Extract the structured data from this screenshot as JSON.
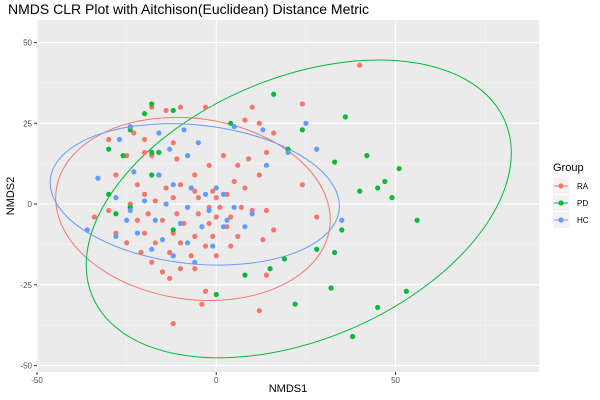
{
  "chart_data": {
    "type": "scatter",
    "title": "NMDS CLR Plot with Aitchison(Euclidean) Distance Metric",
    "xlabel": "NMDS1",
    "ylabel": "NMDS2",
    "xlim": [
      -50,
      90
    ],
    "ylim": [
      -52,
      57
    ],
    "x_ticks": [
      -50,
      0,
      50
    ],
    "y_ticks": [
      -50,
      -25,
      0,
      25,
      50
    ],
    "grid": true,
    "legend": {
      "title": "Group",
      "placement": "right"
    },
    "series": [
      {
        "name": "RA",
        "color": "#F8766D",
        "ellipse": {
          "center": [
            -6.5,
            -1.5
          ],
          "rx": 38.5,
          "ry": 28,
          "angle": 8
        },
        "points": [
          [
            40,
            43
          ],
          [
            -18,
            30
          ],
          [
            -3,
            30
          ],
          [
            -14,
            29
          ],
          [
            -10,
            30
          ],
          [
            10,
            30
          ],
          [
            24,
            31
          ],
          [
            8,
            26
          ],
          [
            12,
            25
          ],
          [
            16,
            22
          ],
          [
            -23,
            22
          ],
          [
            -30,
            20
          ],
          [
            -20,
            20
          ],
          [
            -12,
            19
          ],
          [
            -20,
            16
          ],
          [
            14,
            16
          ],
          [
            -18,
            15
          ],
          [
            -25,
            15
          ],
          [
            28,
            17
          ],
          [
            -11,
            14
          ],
          [
            -28,
            9
          ],
          [
            -16,
            9
          ],
          [
            -6,
            9
          ],
          [
            -2,
            12
          ],
          [
            6,
            12
          ],
          [
            9,
            14
          ],
          [
            2,
            15
          ],
          [
            12,
            9
          ],
          [
            -22,
            6
          ],
          [
            -10,
            6
          ],
          [
            5,
            7
          ],
          [
            8,
            5
          ],
          [
            -14,
            5
          ],
          [
            -6,
            4
          ],
          [
            -1,
            4
          ],
          [
            3,
            3
          ],
          [
            -20,
            3
          ],
          [
            -12,
            2
          ],
          [
            -5,
            2
          ],
          [
            0,
            2
          ],
          [
            -17,
            1
          ],
          [
            -24,
            0
          ],
          [
            -14,
            0
          ],
          [
            -8,
            -1
          ],
          [
            -2,
            -1
          ],
          [
            1,
            -1
          ],
          [
            7,
            -1
          ],
          [
            10,
            -2
          ],
          [
            14,
            -2
          ],
          [
            -30,
            -2
          ],
          [
            -19,
            -3
          ],
          [
            -11,
            -3
          ],
          [
            -5,
            -3
          ],
          [
            0,
            -4
          ],
          [
            4,
            -4
          ],
          [
            -34,
            -4
          ],
          [
            -22,
            -5
          ],
          [
            -15,
            -5
          ],
          [
            -9,
            -6
          ],
          [
            -2,
            -6
          ],
          [
            3,
            -7
          ],
          [
            16,
            -8
          ],
          [
            -28,
            -9
          ],
          [
            -20,
            -9
          ],
          [
            -12,
            -9
          ],
          [
            -6,
            -10
          ],
          [
            -1,
            -10
          ],
          [
            6,
            -10
          ],
          [
            13,
            -11
          ],
          [
            -25,
            -12
          ],
          [
            -17,
            -12
          ],
          [
            -10,
            -12
          ],
          [
            -3,
            -13
          ],
          [
            4,
            -13
          ],
          [
            -21,
            -15
          ],
          [
            -13,
            -15
          ],
          [
            -7,
            -16
          ],
          [
            0,
            -16
          ],
          [
            -18,
            -18
          ],
          [
            -10,
            -20
          ],
          [
            -15,
            -21
          ],
          [
            -6,
            -20
          ],
          [
            -13,
            -23
          ],
          [
            14,
            -22
          ],
          [
            -3,
            -27
          ],
          [
            12,
            -33
          ],
          [
            -4,
            -31
          ],
          [
            -12,
            -37
          ],
          [
            28,
            -4
          ],
          [
            24,
            6
          ]
        ]
      },
      {
        "name": "PD",
        "color": "#00BA38",
        "ellipse": {
          "center": [
            23,
            -1.5
          ],
          "rx": 62.5,
          "ry": 40.5,
          "angle": -23
        },
        "points": [
          [
            16,
            34
          ],
          [
            -18,
            31
          ],
          [
            -12,
            29
          ],
          [
            -20,
            28
          ],
          [
            4,
            25
          ],
          [
            -24,
            23
          ],
          [
            -30,
            17
          ],
          [
            -18,
            16
          ],
          [
            20,
            17
          ],
          [
            -26,
            15
          ],
          [
            33,
            13
          ],
          [
            42,
            15
          ],
          [
            47,
            7
          ],
          [
            51,
            11
          ],
          [
            40,
            4
          ],
          [
            45,
            5
          ],
          [
            49,
            2
          ],
          [
            35,
            -8
          ],
          [
            28,
            -14
          ],
          [
            33,
            -15
          ],
          [
            56,
            -5
          ],
          [
            32,
            -26
          ],
          [
            45,
            -32
          ],
          [
            53,
            -27
          ],
          [
            38,
            -41
          ],
          [
            -18,
            9
          ],
          [
            -24,
            -1
          ],
          [
            -28,
            -3
          ],
          [
            -30,
            3
          ],
          [
            -12,
            -8
          ],
          [
            8,
            -22
          ],
          [
            19,
            -17
          ],
          [
            22,
            -31
          ],
          [
            15,
            -20
          ],
          [
            36,
            27
          ],
          [
            0,
            -28
          ],
          [
            -16,
            16
          ],
          [
            24,
            23
          ]
        ]
      },
      {
        "name": "HC",
        "color": "#619CFF",
        "ellipse": {
          "center": [
            -6,
            3
          ],
          "rx": 40.5,
          "ry": 21.5,
          "angle": 6
        },
        "points": [
          [
            -24,
            24
          ],
          [
            -27,
            20
          ],
          [
            -16,
            22
          ],
          [
            -13,
            17
          ],
          [
            -8,
            15
          ],
          [
            -5,
            19
          ],
          [
            5,
            24
          ],
          [
            13,
            23
          ],
          [
            20,
            16
          ],
          [
            14,
            12
          ],
          [
            25,
            25
          ],
          [
            28,
            17
          ],
          [
            -23,
            10
          ],
          [
            -16,
            9
          ],
          [
            -12,
            6
          ],
          [
            -7,
            5
          ],
          [
            -3,
            3
          ],
          [
            2,
            3
          ],
          [
            -28,
            2
          ],
          [
            -20,
            1
          ],
          [
            -14,
            0
          ],
          [
            -8,
            -1
          ],
          [
            -2,
            -2
          ],
          [
            5,
            -1
          ],
          [
            10,
            -3
          ],
          [
            -25,
            -5
          ],
          [
            -17,
            -5
          ],
          [
            -10,
            -6
          ],
          [
            -4,
            -7
          ],
          [
            2,
            -7
          ],
          [
            8,
            -7
          ],
          [
            -22,
            -9
          ],
          [
            -15,
            -11
          ],
          [
            -8,
            -12
          ],
          [
            -1,
            -13
          ],
          [
            -18,
            -14
          ],
          [
            -12,
            -16
          ],
          [
            -6,
            -18
          ],
          [
            -36,
            -8
          ],
          [
            -28,
            -10
          ],
          [
            -33,
            8
          ],
          [
            -9,
            23
          ],
          [
            -24,
            -2
          ],
          [
            0,
            5
          ],
          [
            3,
            -5
          ],
          [
            35,
            -5
          ]
        ]
      }
    ]
  }
}
